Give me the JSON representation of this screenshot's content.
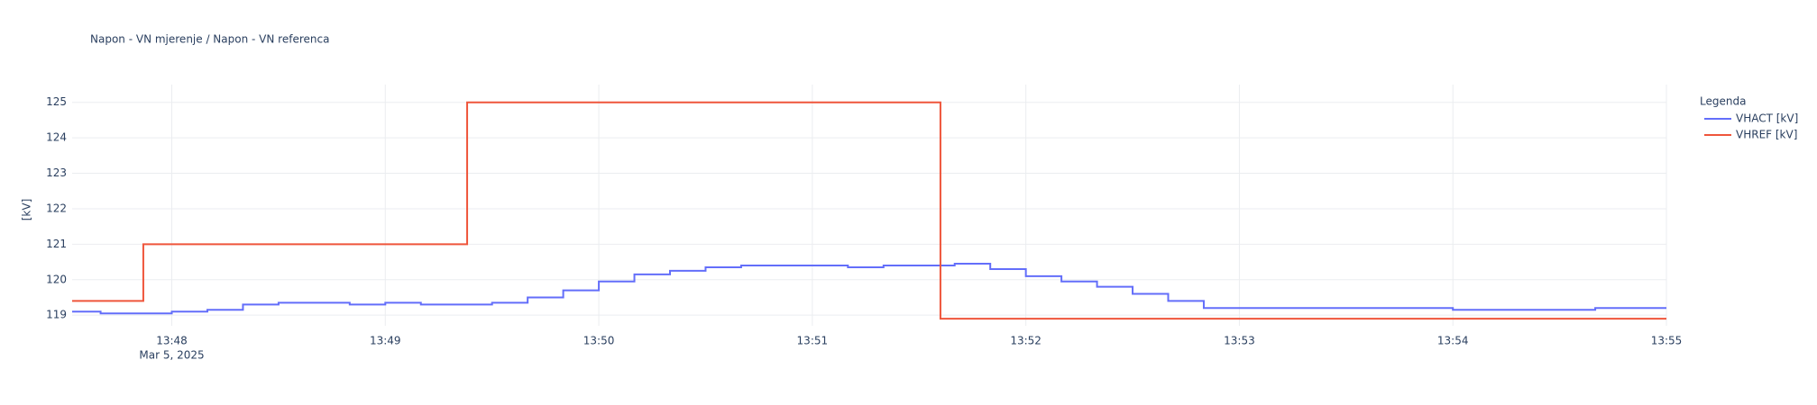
{
  "chart_data": {
    "type": "line",
    "line_shape": "hv",
    "title": "Napon - VN mjerenje / Napon - VN referenca",
    "y_label": "[kV]",
    "x_date_label": "Mar 5, 2025",
    "legend_title": "Legenda",
    "legend_position": "right",
    "grid": true,
    "xlim": [
      "13:47:32",
      "13:55:00"
    ],
    "xticks": [
      "13:48",
      "13:49",
      "13:50",
      "13:51",
      "13:52",
      "13:53",
      "13:54",
      "13:55"
    ],
    "ylim": [
      118.7,
      125.5
    ],
    "yticks": [
      119,
      120,
      121,
      122,
      123,
      124,
      125
    ],
    "series": [
      {
        "name": "VHACT [kV]",
        "color": "#636efa",
        "x": [
          "13:47:32",
          "13:47:40",
          "13:47:50",
          "13:48:00",
          "13:48:10",
          "13:48:20",
          "13:48:30",
          "13:48:40",
          "13:48:50",
          "13:49:00",
          "13:49:10",
          "13:49:20",
          "13:49:30",
          "13:49:40",
          "13:49:50",
          "13:50:00",
          "13:50:10",
          "13:50:20",
          "13:50:30",
          "13:50:40",
          "13:50:50",
          "13:51:00",
          "13:51:10",
          "13:51:20",
          "13:51:30",
          "13:51:40",
          "13:51:50",
          "13:52:00",
          "13:52:10",
          "13:52:20",
          "13:52:30",
          "13:52:40",
          "13:52:50",
          "13:53:00",
          "13:53:10",
          "13:53:20",
          "13:53:30",
          "13:53:40",
          "13:53:50",
          "13:54:00",
          "13:54:10",
          "13:54:20",
          "13:54:30",
          "13:54:40",
          "13:54:50",
          "13:55:00"
        ],
        "values": [
          119.1,
          119.05,
          119.05,
          119.1,
          119.15,
          119.3,
          119.35,
          119.35,
          119.3,
          119.35,
          119.3,
          119.3,
          119.35,
          119.5,
          119.7,
          119.95,
          120.15,
          120.25,
          120.35,
          120.4,
          120.4,
          120.4,
          120.35,
          120.4,
          120.4,
          120.45,
          120.3,
          120.1,
          119.95,
          119.8,
          119.6,
          119.4,
          119.2,
          119.2,
          119.2,
          119.2,
          119.2,
          119.2,
          119.2,
          119.15,
          119.15,
          119.15,
          119.15,
          119.2,
          119.2,
          119.2
        ]
      },
      {
        "name": "VHREF [kV]",
        "color": "#EF553B",
        "x": [
          "13:47:32",
          "13:47:52",
          "13:49:23",
          "13:51:36",
          "13:55:00"
        ],
        "values": [
          119.4,
          121,
          125,
          118.9,
          118.9
        ]
      }
    ]
  }
}
